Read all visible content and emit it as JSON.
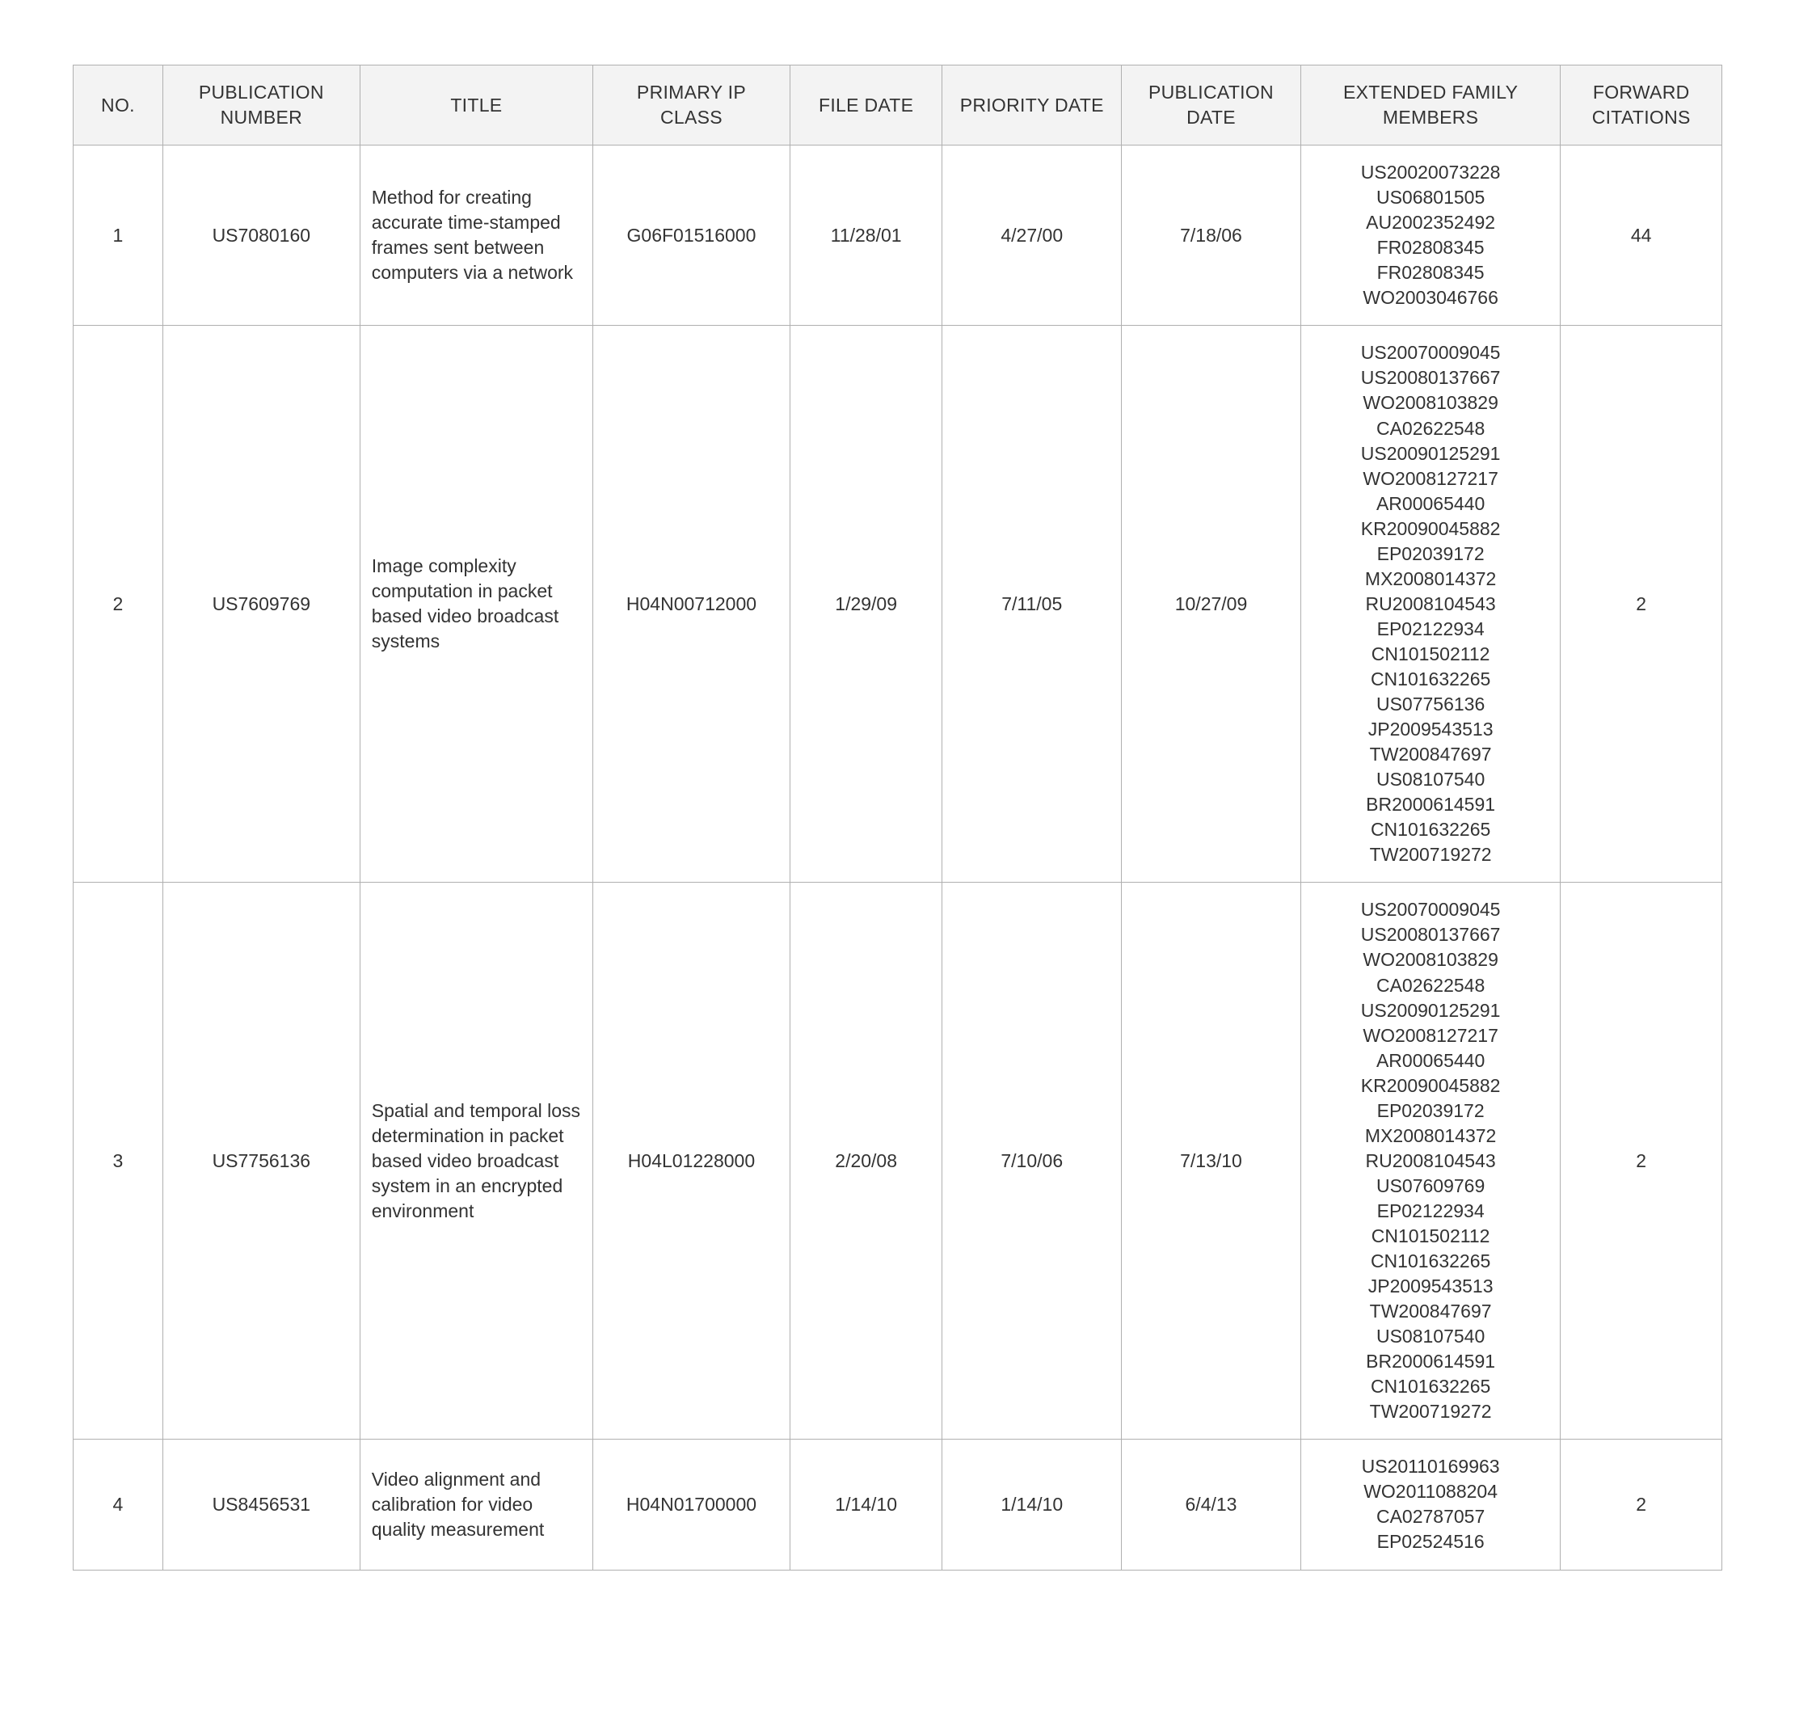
{
  "table": {
    "columns": [
      "NO.",
      "PUBLICATION NUMBER",
      "TITLE",
      "PRIMARY IP CLASS",
      "FILE DATE",
      "PRIORITY DATE",
      "PUBLICATION DATE",
      "EXTENDED FAMILY MEMBERS",
      "FORWARD CITATIONS"
    ],
    "rows": [
      {
        "no": "1",
        "publication_number": "US7080160",
        "title": "Method for creating accurate time-stamped frames sent between computers via a network",
        "primary_ip_class": "G06F01516000",
        "file_date": "11/28/01",
        "priority_date": "4/27/00",
        "publication_date": "7/18/06",
        "family_members": "US20020073228\nUS06801505\nAU2002352492\nFR02808345\nFR02808345\nWO2003046766",
        "forward_citations": "44"
      },
      {
        "no": "2",
        "publication_number": "US7609769",
        "title": "Image complexity computation in packet based video broadcast systems",
        "primary_ip_class": "H04N00712000",
        "file_date": "1/29/09",
        "priority_date": "7/11/05",
        "publication_date": "10/27/09",
        "family_members": "US20070009045\nUS20080137667\nWO2008103829\nCA02622548\nUS20090125291\nWO2008127217\nAR00065440\nKR20090045882\nEP02039172\nMX2008014372\nRU2008104543\nEP02122934\nCN101502112\nCN101632265\nUS07756136\nJP2009543513\nTW200847697\nUS08107540\nBR2000614591\nCN101632265\nTW200719272",
        "forward_citations": "2"
      },
      {
        "no": "3",
        "publication_number": "US7756136",
        "title": "Spatial and temporal loss determination in packet based video broadcast system in an encrypted environment",
        "primary_ip_class": "H04L01228000",
        "file_date": "2/20/08",
        "priority_date": "7/10/06",
        "publication_date": "7/13/10",
        "family_members": "US20070009045\nUS20080137667\nWO2008103829\nCA02622548\nUS20090125291\nWO2008127217\nAR00065440\nKR20090045882\nEP02039172\nMX2008014372\nRU2008104543\nUS07609769\nEP02122934\nCN101502112\nCN101632265\nJP2009543513\nTW200847697\nUS08107540\nBR2000614591\nCN101632265\nTW200719272",
        "forward_citations": "2"
      },
      {
        "no": "4",
        "publication_number": "US8456531",
        "title": "Video alignment and calibration for video quality measurement",
        "primary_ip_class": "H04N01700000",
        "file_date": "1/14/10",
        "priority_date": "1/14/10",
        "publication_date": "6/4/13",
        "family_members": "US20110169963\nWO2011088204\nCA02787057\nEP02524516",
        "forward_citations": "2"
      }
    ],
    "header_bg": "#f3f3f3",
    "border_color": "#b0b0b0",
    "text_color": "#333333",
    "font_size_pt": 17
  }
}
